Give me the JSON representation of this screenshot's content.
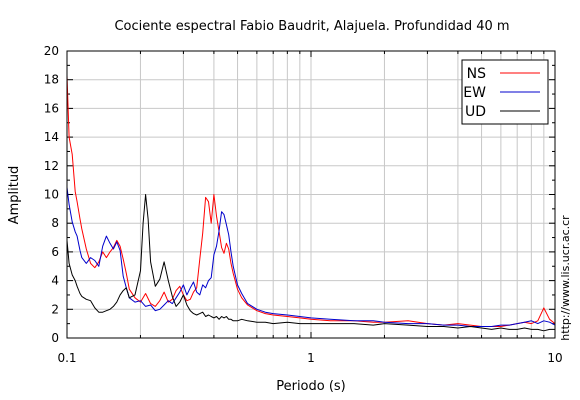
{
  "chart_data": {
    "type": "line",
    "title": "Cociente espectral Fabio Baudrit, Alajuela. Profundidad 40 m",
    "xlabel": "Periodo (s)",
    "ylabel": "Amplitud",
    "xscale": "log",
    "xlim": [
      0.1,
      10
    ],
    "ylim": [
      0,
      20
    ],
    "x_ticks": [
      0.1,
      1,
      10
    ],
    "x_tick_labels": [
      "0.1",
      "1",
      "10"
    ],
    "y_ticks": [
      0,
      2,
      4,
      6,
      8,
      10,
      12,
      14,
      16,
      18,
      20
    ],
    "y_tick_labels": [
      "0",
      "2",
      "4",
      "6",
      "8",
      "10",
      "12",
      "14",
      "16",
      "18",
      "20"
    ],
    "grid": true,
    "legend_position": "top-right",
    "series": [
      {
        "name": "NS",
        "color": "#ff0000",
        "x": [
          0.1,
          0.102,
          0.105,
          0.108,
          0.11,
          0.113,
          0.115,
          0.12,
          0.125,
          0.13,
          0.135,
          0.14,
          0.145,
          0.15,
          0.155,
          0.16,
          0.165,
          0.17,
          0.175,
          0.18,
          0.19,
          0.2,
          0.21,
          0.22,
          0.23,
          0.24,
          0.25,
          0.26,
          0.27,
          0.28,
          0.29,
          0.3,
          0.31,
          0.32,
          0.33,
          0.34,
          0.35,
          0.36,
          0.37,
          0.38,
          0.39,
          0.4,
          0.41,
          0.42,
          0.43,
          0.44,
          0.45,
          0.46,
          0.47,
          0.48,
          0.5,
          0.52,
          0.55,
          0.6,
          0.65,
          0.7,
          0.8,
          0.9,
          1.0,
          1.2,
          1.5,
          1.8,
          2.0,
          2.5,
          3.0,
          3.5,
          4.0,
          4.5,
          5.0,
          5.5,
          6.0,
          6.5,
          7.0,
          7.5,
          8.0,
          8.5,
          9.0,
          9.5,
          10.0
        ],
        "y": [
          18.3,
          14.0,
          12.8,
          10.2,
          9.5,
          8.3,
          7.6,
          6.2,
          5.2,
          4.9,
          5.3,
          6.0,
          5.6,
          6.0,
          6.3,
          6.8,
          6.4,
          5.5,
          4.5,
          3.4,
          2.8,
          2.5,
          3.1,
          2.4,
          2.2,
          2.6,
          3.2,
          2.5,
          2.7,
          3.3,
          3.6,
          3.0,
          2.6,
          2.7,
          3.2,
          3.5,
          5.5,
          7.3,
          9.8,
          9.5,
          8.0,
          10.0,
          8.5,
          7.4,
          6.3,
          5.9,
          6.6,
          6.2,
          5.2,
          4.5,
          3.4,
          2.8,
          2.3,
          1.9,
          1.7,
          1.6,
          1.5,
          1.4,
          1.3,
          1.2,
          1.2,
          1.1,
          1.1,
          1.2,
          1.0,
          0.9,
          1.0,
          0.9,
          0.8,
          0.8,
          0.8,
          0.9,
          1.0,
          1.1,
          1.0,
          1.2,
          2.1,
          1.3,
          1.0
        ]
      },
      {
        "name": "EW",
        "color": "#0000cc",
        "x": [
          0.1,
          0.102,
          0.105,
          0.108,
          0.11,
          0.113,
          0.115,
          0.12,
          0.125,
          0.13,
          0.135,
          0.14,
          0.145,
          0.15,
          0.155,
          0.16,
          0.165,
          0.17,
          0.175,
          0.18,
          0.19,
          0.2,
          0.21,
          0.22,
          0.23,
          0.24,
          0.25,
          0.26,
          0.27,
          0.28,
          0.29,
          0.3,
          0.31,
          0.32,
          0.33,
          0.34,
          0.35,
          0.36,
          0.37,
          0.38,
          0.39,
          0.4,
          0.41,
          0.42,
          0.43,
          0.44,
          0.45,
          0.46,
          0.47,
          0.48,
          0.5,
          0.52,
          0.55,
          0.6,
          0.65,
          0.7,
          0.8,
          0.9,
          1.0,
          1.2,
          1.5,
          1.8,
          2.0,
          2.5,
          3.0,
          3.5,
          4.0,
          4.5,
          5.0,
          5.5,
          6.0,
          6.5,
          7.0,
          7.5,
          8.0,
          8.5,
          9.0,
          9.5,
          10.0
        ],
        "y": [
          10.5,
          9.3,
          8.1,
          7.4,
          7.1,
          6.1,
          5.6,
          5.2,
          5.6,
          5.4,
          5.0,
          6.4,
          7.1,
          6.6,
          6.2,
          6.7,
          6.1,
          4.3,
          3.5,
          2.8,
          2.5,
          2.6,
          2.2,
          2.3,
          1.9,
          2.0,
          2.3,
          2.6,
          2.4,
          2.8,
          3.2,
          3.7,
          3.0,
          3.5,
          3.9,
          3.2,
          3.0,
          3.7,
          3.5,
          4.0,
          4.2,
          5.8,
          6.4,
          7.5,
          8.8,
          8.6,
          7.9,
          7.2,
          6.0,
          5.0,
          3.7,
          3.1,
          2.4,
          2.0,
          1.8,
          1.7,
          1.6,
          1.5,
          1.4,
          1.3,
          1.2,
          1.2,
          1.1,
          1.0,
          1.0,
          0.9,
          0.9,
          0.8,
          0.8,
          0.8,
          0.9,
          0.9,
          1.0,
          1.1,
          1.2,
          1.0,
          1.2,
          1.1,
          0.9
        ]
      },
      {
        "name": "UD",
        "color": "#000000",
        "x": [
          0.1,
          0.102,
          0.105,
          0.108,
          0.11,
          0.113,
          0.115,
          0.12,
          0.125,
          0.13,
          0.135,
          0.14,
          0.145,
          0.15,
          0.155,
          0.16,
          0.165,
          0.17,
          0.175,
          0.18,
          0.19,
          0.2,
          0.205,
          0.21,
          0.215,
          0.22,
          0.23,
          0.24,
          0.25,
          0.26,
          0.27,
          0.28,
          0.29,
          0.3,
          0.31,
          0.32,
          0.33,
          0.34,
          0.35,
          0.36,
          0.37,
          0.38,
          0.39,
          0.4,
          0.41,
          0.42,
          0.43,
          0.44,
          0.45,
          0.46,
          0.47,
          0.48,
          0.5,
          0.52,
          0.55,
          0.6,
          0.65,
          0.7,
          0.8,
          0.9,
          1.0,
          1.2,
          1.5,
          1.8,
          2.0,
          2.5,
          3.0,
          3.5,
          4.0,
          4.5,
          5.0,
          5.5,
          6.0,
          6.5,
          7.0,
          7.5,
          8.0,
          8.5,
          9.0,
          9.5,
          10.0
        ],
        "y": [
          6.8,
          5.2,
          4.4,
          4.0,
          3.6,
          3.1,
          2.9,
          2.7,
          2.6,
          2.1,
          1.8,
          1.8,
          1.9,
          2.0,
          2.2,
          2.5,
          3.0,
          3.3,
          3.5,
          2.8,
          3.0,
          4.7,
          8.0,
          10.0,
          8.3,
          5.3,
          3.6,
          4.1,
          5.3,
          4.0,
          2.9,
          2.2,
          2.5,
          3.0,
          2.3,
          1.9,
          1.7,
          1.6,
          1.7,
          1.8,
          1.5,
          1.6,
          1.5,
          1.4,
          1.5,
          1.3,
          1.5,
          1.4,
          1.5,
          1.3,
          1.3,
          1.2,
          1.2,
          1.3,
          1.2,
          1.1,
          1.1,
          1.0,
          1.1,
          1.0,
          1.0,
          1.0,
          1.0,
          0.9,
          1.0,
          0.9,
          0.8,
          0.8,
          0.7,
          0.8,
          0.7,
          0.6,
          0.7,
          0.6,
          0.6,
          0.7,
          0.6,
          0.6,
          0.5,
          0.6,
          0.6
        ]
      }
    ],
    "annotations": [
      "http://www.lis.ucr.ac.cr"
    ]
  }
}
